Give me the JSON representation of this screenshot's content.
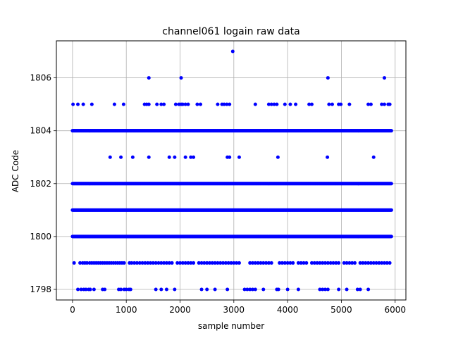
{
  "chart_data": {
    "type": "scatter",
    "title": "channel061 logain raw data",
    "xlabel": "sample number",
    "ylabel": "ADC Code",
    "xlim": [
      -300,
      6200
    ],
    "ylim": [
      1797.6,
      1807.4
    ],
    "xticks": [
      0,
      1000,
      2000,
      3000,
      4000,
      5000,
      6000
    ],
    "yticks": [
      1798,
      1800,
      1802,
      1804,
      1806
    ],
    "grid": true,
    "marker_color": "#0000ff",
    "n_samples": 5940,
    "series": [
      {
        "dense_levels": [
          1800,
          1801,
          1802,
          1804
        ],
        "sparse": {
          "1799": [
            30,
            140,
            190,
            230,
            270,
            320,
            360,
            400,
            440,
            480,
            520,
            560,
            600,
            640,
            680,
            720,
            760,
            800,
            840,
            880,
            920,
            960,
            1060,
            1100,
            1150,
            1200,
            1250,
            1300,
            1350,
            1400,
            1450,
            1500,
            1550,
            1600,
            1650,
            1700,
            1750,
            1800,
            1850,
            1950,
            2000,
            2050,
            2100,
            2150,
            2200,
            2250,
            2350,
            2400,
            2450,
            2500,
            2550,
            2600,
            2650,
            2700,
            2750,
            2800,
            2850,
            2900,
            2950,
            3000,
            3050,
            3100,
            3300,
            3350,
            3400,
            3450,
            3500,
            3550,
            3600,
            3650,
            3700,
            3850,
            3900,
            3950,
            4000,
            4050,
            4100,
            4200,
            4250,
            4300,
            4350,
            4450,
            4500,
            4550,
            4600,
            4650,
            4700,
            4750,
            4800,
            4850,
            4900,
            4950,
            5050,
            5100,
            5150,
            5200,
            5250,
            5350,
            5400,
            5450,
            5500,
            5550,
            5600,
            5650,
            5700,
            5750,
            5800,
            5850,
            5900
          ],
          "1798": [
            100,
            160,
            210,
            250,
            300,
            330,
            400,
            560,
            600,
            860,
            900,
            960,
            1000,
            1050,
            1080,
            1550,
            1650,
            1750,
            1900,
            2400,
            2500,
            2650,
            2880,
            3200,
            3250,
            3300,
            3350,
            3400,
            3550,
            3800,
            3830,
            4000,
            4200,
            4600,
            4650,
            4700,
            4750,
            4950,
            5100,
            5300,
            5350,
            5500
          ],
          "1803": [
            700,
            900,
            1120,
            1420,
            1800,
            1900,
            2100,
            2200,
            2250,
            2880,
            2920,
            3100,
            3820,
            4740,
            5600
          ],
          "1805": [
            10,
            100,
            200,
            360,
            780,
            950,
            1340,
            1380,
            1420,
            1570,
            1650,
            1700,
            1920,
            1980,
            2020,
            2050,
            2100,
            2150,
            2320,
            2380,
            2700,
            2780,
            2820,
            2870,
            2920,
            3400,
            3650,
            3700,
            3750,
            3800,
            3950,
            4050,
            4150,
            4400,
            4450,
            4770,
            4830,
            4950,
            4990,
            5150,
            5500,
            5550,
            5750,
            5800,
            5870,
            5900
          ],
          "1806": [
            1420,
            2020,
            4750,
            5800
          ],
          "1807": [
            2980
          ]
        }
      }
    ]
  }
}
